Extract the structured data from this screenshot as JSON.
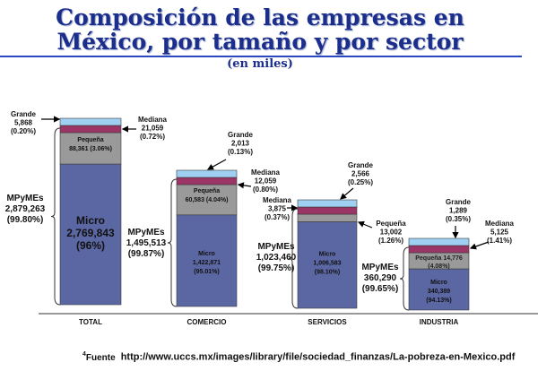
{
  "header": {
    "title_line1": "Composición de las empresas en",
    "title_line2": "México, por tamaño y por sector",
    "subtitle": "(en miles)"
  },
  "colors": {
    "title": "#1c2e8c",
    "micro": "#5b67a3",
    "pequena": "#9a9a9a",
    "mediana": "#9b3566",
    "grande": "#9fd0f2"
  },
  "chart_data": {
    "type": "bar",
    "stacked": true,
    "title": "Composición de las empresas en México, por tamaño y por sector",
    "subtitle": "(en miles)",
    "categories": [
      "TOTAL",
      "COMERCIO",
      "SERVICIOS",
      "INDUSTRIA"
    ],
    "series": [
      {
        "name": "Micro",
        "values": [
          2769843,
          1422871,
          1006583,
          340389
        ],
        "pct": [
          "96%",
          "95.01%",
          "98.10%",
          "94.13%"
        ]
      },
      {
        "name": "Pequeña",
        "values": [
          88361,
          60583,
          13002,
          14776
        ],
        "pct": [
          "3.06%",
          "4.04%",
          "1.26%",
          "4.08%"
        ]
      },
      {
        "name": "Mediana",
        "values": [
          21059,
          12059,
          3875,
          5125
        ],
        "pct": [
          "0.72%",
          "0.80%",
          "0.37%",
          "1.41%"
        ]
      },
      {
        "name": "Grande",
        "values": [
          5868,
          2013,
          2566,
          1289
        ],
        "pct": [
          "0.20%",
          "0.13%",
          "0.25%",
          "0.35%"
        ]
      }
    ],
    "mpymes": {
      "label": "MPyMEs",
      "values": [
        "2,879,263",
        "1,495,513",
        "1,023,460",
        "360,290"
      ],
      "pct": [
        "(99.80%)",
        "(99.87%)",
        "(99.75%)",
        "(99.65%)"
      ]
    },
    "labels": {
      "total": {
        "grande": [
          "Grande",
          "5,868",
          "(0.20%)"
        ],
        "mediana": [
          "Mediana",
          "21,059",
          "(0.72%)"
        ],
        "pequena": [
          "Pequeña",
          "88,361  (3.06%)"
        ],
        "micro": [
          "Micro",
          "2,769,843",
          "(96%)"
        ]
      },
      "comercio": {
        "grande": [
          "Grande",
          "2,013",
          "(0.13%)"
        ],
        "mediana": [
          "Mediana",
          "12,059",
          "(0.80%)"
        ],
        "pequena": [
          "Pequeña",
          "60,583  (4.04%)"
        ],
        "micro": [
          "Micro",
          "1,422,871",
          "(95.01%)"
        ]
      },
      "servicios": {
        "grande": [
          "Grande",
          "2,566",
          "(0.25%)"
        ],
        "mediana": [
          "Mediana",
          "3,875",
          "(0.37%)"
        ],
        "pequena": [
          "Pequeña",
          "13,002",
          "(1.26%)"
        ],
        "micro": [
          "Micro",
          "1,006,583",
          "(98.10%)"
        ]
      },
      "industria": {
        "grande": [
          "Grande",
          "1,289",
          "(0.35%)"
        ],
        "mediana": [
          "Mediana",
          "5,125",
          "(1.41%)"
        ],
        "pequena": [
          "Pequeña 14,776",
          "(4.08%)"
        ],
        "micro": [
          "Micro",
          "340,389",
          "(94.13%)"
        ]
      }
    },
    "xlabel": "",
    "ylabel": "",
    "grid": false,
    "legend": "none"
  },
  "footer": {
    "note_number": "4",
    "source_label": "Fuente",
    "source_url": "http://www.uccs.mx/images/library/file/sociedad_finanzas/La-pobreza-en-Mexico.pdf"
  }
}
